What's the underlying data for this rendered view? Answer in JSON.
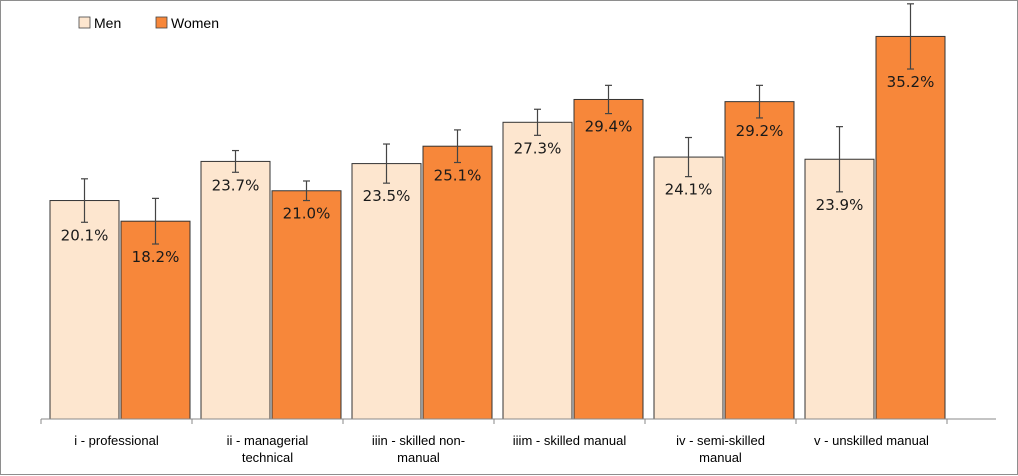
{
  "chart_data": {
    "type": "bar",
    "categories": [
      [
        "i - professional"
      ],
      [
        "ii - managerial",
        "technical"
      ],
      [
        "iiin - skilled non-",
        "manual"
      ],
      [
        "iiim - skilled manual"
      ],
      [
        "iv - semi-skilled",
        "manual"
      ],
      [
        "v - unskilled manual"
      ]
    ],
    "series": [
      {
        "name": "Men",
        "color": "#fde6cf",
        "values": [
          20.1,
          23.7,
          23.5,
          27.3,
          24.1,
          23.9
        ],
        "labels": [
          "20.1%",
          "23.7%",
          "23.5%",
          "27.3%",
          "24.1%",
          "23.9%"
        ],
        "error": [
          2.0,
          1.0,
          1.8,
          1.2,
          1.8,
          3.0
        ]
      },
      {
        "name": "Women",
        "color": "#f7873a",
        "values": [
          18.2,
          21.0,
          25.1,
          29.4,
          29.2,
          35.2
        ],
        "labels": [
          "18.2%",
          "21.0%",
          "25.1%",
          "29.4%",
          "29.2%",
          "35.2%"
        ],
        "error": [
          2.1,
          0.9,
          1.5,
          1.3,
          1.5,
          3.0
        ]
      }
    ],
    "ylim": [
      0,
      38
    ],
    "grid": false,
    "legend_position": "top-left"
  }
}
